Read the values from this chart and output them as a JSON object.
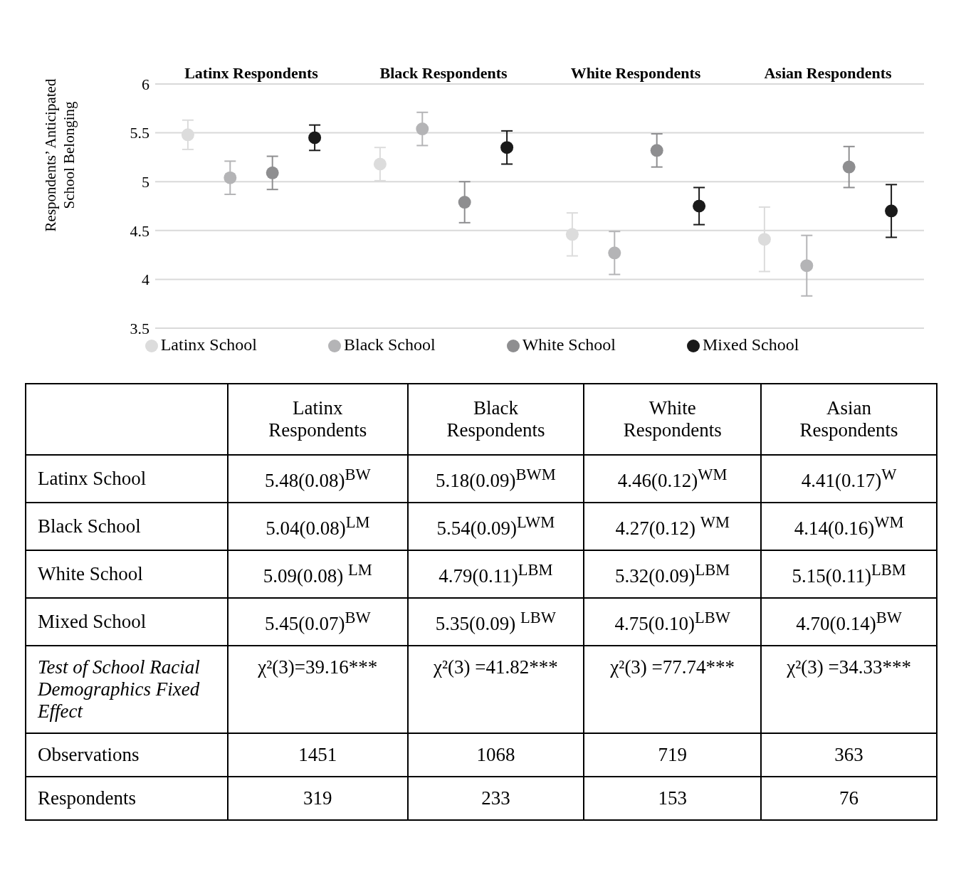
{
  "chart_data": {
    "type": "scatter",
    "ylabel": "Respondents’ Anticipated School Belonging",
    "categories": [
      "Latinx Respondents",
      "Black Respondents",
      "White Respondents",
      "Asian Respondents"
    ],
    "ylim": [
      3.5,
      6
    ],
    "yticks": [
      3.5,
      4,
      4.5,
      5,
      5.5,
      6
    ],
    "grid": "y",
    "legend": "bottom",
    "marker": "circle",
    "series": [
      {
        "name": "Latinx School",
        "color": "#dcdcdc",
        "values": [
          5.48,
          5.18,
          4.46,
          4.41
        ],
        "errors": [
          0.15,
          0.17,
          0.22,
          0.33
        ],
        "value_labels": [
          "5.48(0.08)$^{BW}$",
          "5.18(0.09)$^{BWM}$",
          "4.46(0.12)$^{WM}$",
          "4.41(0.17)$^{W}$"
        ]
      },
      {
        "name": "Black School",
        "color": "#b4b4b6",
        "values": [
          5.04,
          5.54,
          4.27,
          4.14
        ],
        "errors": [
          0.17,
          0.17,
          0.22,
          0.31
        ],
        "value_labels": [
          "5.04(0.08)$^{LM}$",
          "5.54(0.09)$^{LWM}$",
          "4.27(0.12) $^{WM}$",
          "4.14(0.16)$^{WM}$"
        ]
      },
      {
        "name": "White School",
        "color": "#8e8e90",
        "values": [
          5.09,
          4.79,
          5.32,
          5.15
        ],
        "errors": [
          0.17,
          0.21,
          0.17,
          0.21
        ],
        "value_labels": [
          "5.09(0.08) $^{LM}$",
          "4.79(0.11)$^{LBM}$",
          "5.32(0.09)$^{LBM}$",
          "5.15(0.11)$^{LBM}$"
        ]
      },
      {
        "name": "Mixed School",
        "color": "#1a1a1a",
        "values": [
          5.45,
          5.35,
          4.75,
          4.7
        ],
        "errors": [
          0.13,
          0.17,
          0.19,
          0.27
        ],
        "value_labels": [
          "5.45(0.07)$^{BW}$",
          "5.35(0.09) $^{LBW}$",
          "4.75(0.10)$^{LBW}$",
          "4.70(0.14)$^{BW}$"
        ]
      }
    ],
    "annotations": [
      "Test of School Racial Demographics Fixed Effect",
      "χ²(3)=39.16***",
      "χ²(3) =41.82***",
      "χ²(3) =77.74***",
      "χ²(3) =34.33***",
      "Observations",
      "1451",
      "1068",
      "719",
      "363",
      "Respondents",
      "319",
      "233",
      "153",
      "76"
    ]
  }
}
